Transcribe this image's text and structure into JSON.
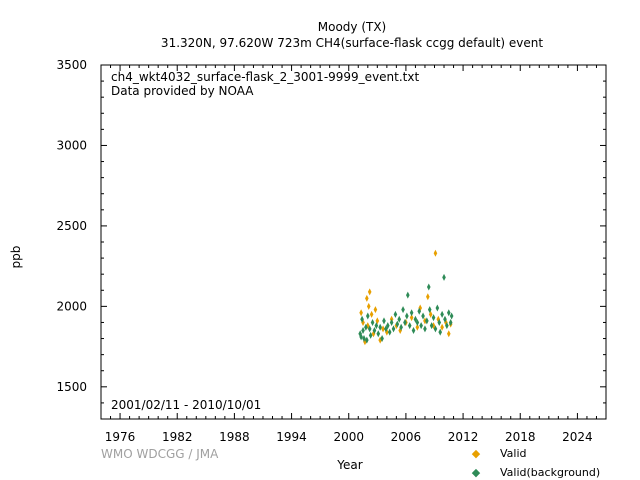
{
  "header": {
    "title": "Moody (TX)",
    "subtitle": "31.320N, 97.620W 723m    CH4(surface-flask ccgg default) event"
  },
  "plot_text": {
    "file": "ch4_wkt4032_surface-flask_2_3001-9999_event.txt",
    "provider": "Data provided by NOAA",
    "date_range": "2001/02/11 - 2010/10/01"
  },
  "footer": {
    "credit": "WMO WDCGG / JMA"
  },
  "colors": {
    "valid": "#e8a000",
    "background": "#2e8b57"
  },
  "chart_data": {
    "type": "scatter",
    "xlabel": "Year",
    "ylabel": "ppb",
    "xlim": [
      1974,
      2027
    ],
    "ylim": [
      1300,
      3500
    ],
    "xticks": [
      1976,
      1982,
      1988,
      1994,
      2000,
      2006,
      2012,
      2018,
      2024
    ],
    "yticks": [
      1500,
      2000,
      2500,
      3000,
      3500
    ],
    "grid": false,
    "legend": "bottom-right",
    "series": [
      {
        "name": "Valid",
        "color": "#e8a000",
        "marker": "diamond",
        "points": [
          [
            2001.3,
            1960
          ],
          [
            2001.5,
            1900
          ],
          [
            2001.7,
            1780
          ],
          [
            2001.9,
            2050
          ],
          [
            2002.0,
            1880
          ],
          [
            2002.1,
            2000
          ],
          [
            2002.2,
            2090
          ],
          [
            2002.4,
            1950
          ],
          [
            2002.6,
            1830
          ],
          [
            2002.8,
            1980
          ],
          [
            2003.0,
            1910
          ],
          [
            2003.3,
            1790
          ],
          [
            2003.6,
            1860
          ],
          [
            2004.0,
            1840
          ],
          [
            2004.5,
            1920
          ],
          [
            2005.0,
            1880
          ],
          [
            2005.4,
            1850
          ],
          [
            2006.0,
            1900
          ],
          [
            2006.6,
            1930
          ],
          [
            2007.2,
            1870
          ],
          [
            2007.5,
            1990
          ],
          [
            2008.0,
            1910
          ],
          [
            2008.3,
            2060
          ],
          [
            2008.6,
            1950
          ],
          [
            2008.9,
            1880
          ],
          [
            2009.1,
            2330
          ],
          [
            2009.4,
            1920
          ],
          [
            2009.8,
            1870
          ],
          [
            2010.2,
            1900
          ],
          [
            2010.5,
            1830
          ],
          [
            2010.7,
            1890
          ]
        ]
      },
      {
        "name": "Valid(background)",
        "color": "#2e8b57",
        "marker": "diamond",
        "points": [
          [
            2001.2,
            1830
          ],
          [
            2001.3,
            1810
          ],
          [
            2001.4,
            1920
          ],
          [
            2001.5,
            1850
          ],
          [
            2001.6,
            1800
          ],
          [
            2001.8,
            1870
          ],
          [
            2001.9,
            1790
          ],
          [
            2002.0,
            1940
          ],
          [
            2002.2,
            1860
          ],
          [
            2002.3,
            1820
          ],
          [
            2002.5,
            1900
          ],
          [
            2002.7,
            1850
          ],
          [
            2002.9,
            1880
          ],
          [
            2003.1,
            1830
          ],
          [
            2003.3,
            1870
          ],
          [
            2003.5,
            1800
          ],
          [
            2003.7,
            1910
          ],
          [
            2003.9,
            1860
          ],
          [
            2004.1,
            1880
          ],
          [
            2004.3,
            1840
          ],
          [
            2004.5,
            1900
          ],
          [
            2004.7,
            1860
          ],
          [
            2004.9,
            1950
          ],
          [
            2005.1,
            1890
          ],
          [
            2005.3,
            1920
          ],
          [
            2005.5,
            1870
          ],
          [
            2005.7,
            1980
          ],
          [
            2005.9,
            1900
          ],
          [
            2006.1,
            1940
          ],
          [
            2006.2,
            2070
          ],
          [
            2006.4,
            1880
          ],
          [
            2006.6,
            1960
          ],
          [
            2006.8,
            1850
          ],
          [
            2007.0,
            1920
          ],
          [
            2007.2,
            1900
          ],
          [
            2007.4,
            1970
          ],
          [
            2007.6,
            1880
          ],
          [
            2007.8,
            1940
          ],
          [
            2008.0,
            1860
          ],
          [
            2008.2,
            1910
          ],
          [
            2008.4,
            2120
          ],
          [
            2008.5,
            1980
          ],
          [
            2008.7,
            1880
          ],
          [
            2008.9,
            1930
          ],
          [
            2009.1,
            1860
          ],
          [
            2009.3,
            1990
          ],
          [
            2009.5,
            1900
          ],
          [
            2009.6,
            1840
          ],
          [
            2009.8,
            1950
          ],
          [
            2010.0,
            2180
          ],
          [
            2010.1,
            1920
          ],
          [
            2010.3,
            1880
          ],
          [
            2010.5,
            1960
          ],
          [
            2010.7,
            1900
          ],
          [
            2010.8,
            1940
          ]
        ]
      }
    ]
  }
}
